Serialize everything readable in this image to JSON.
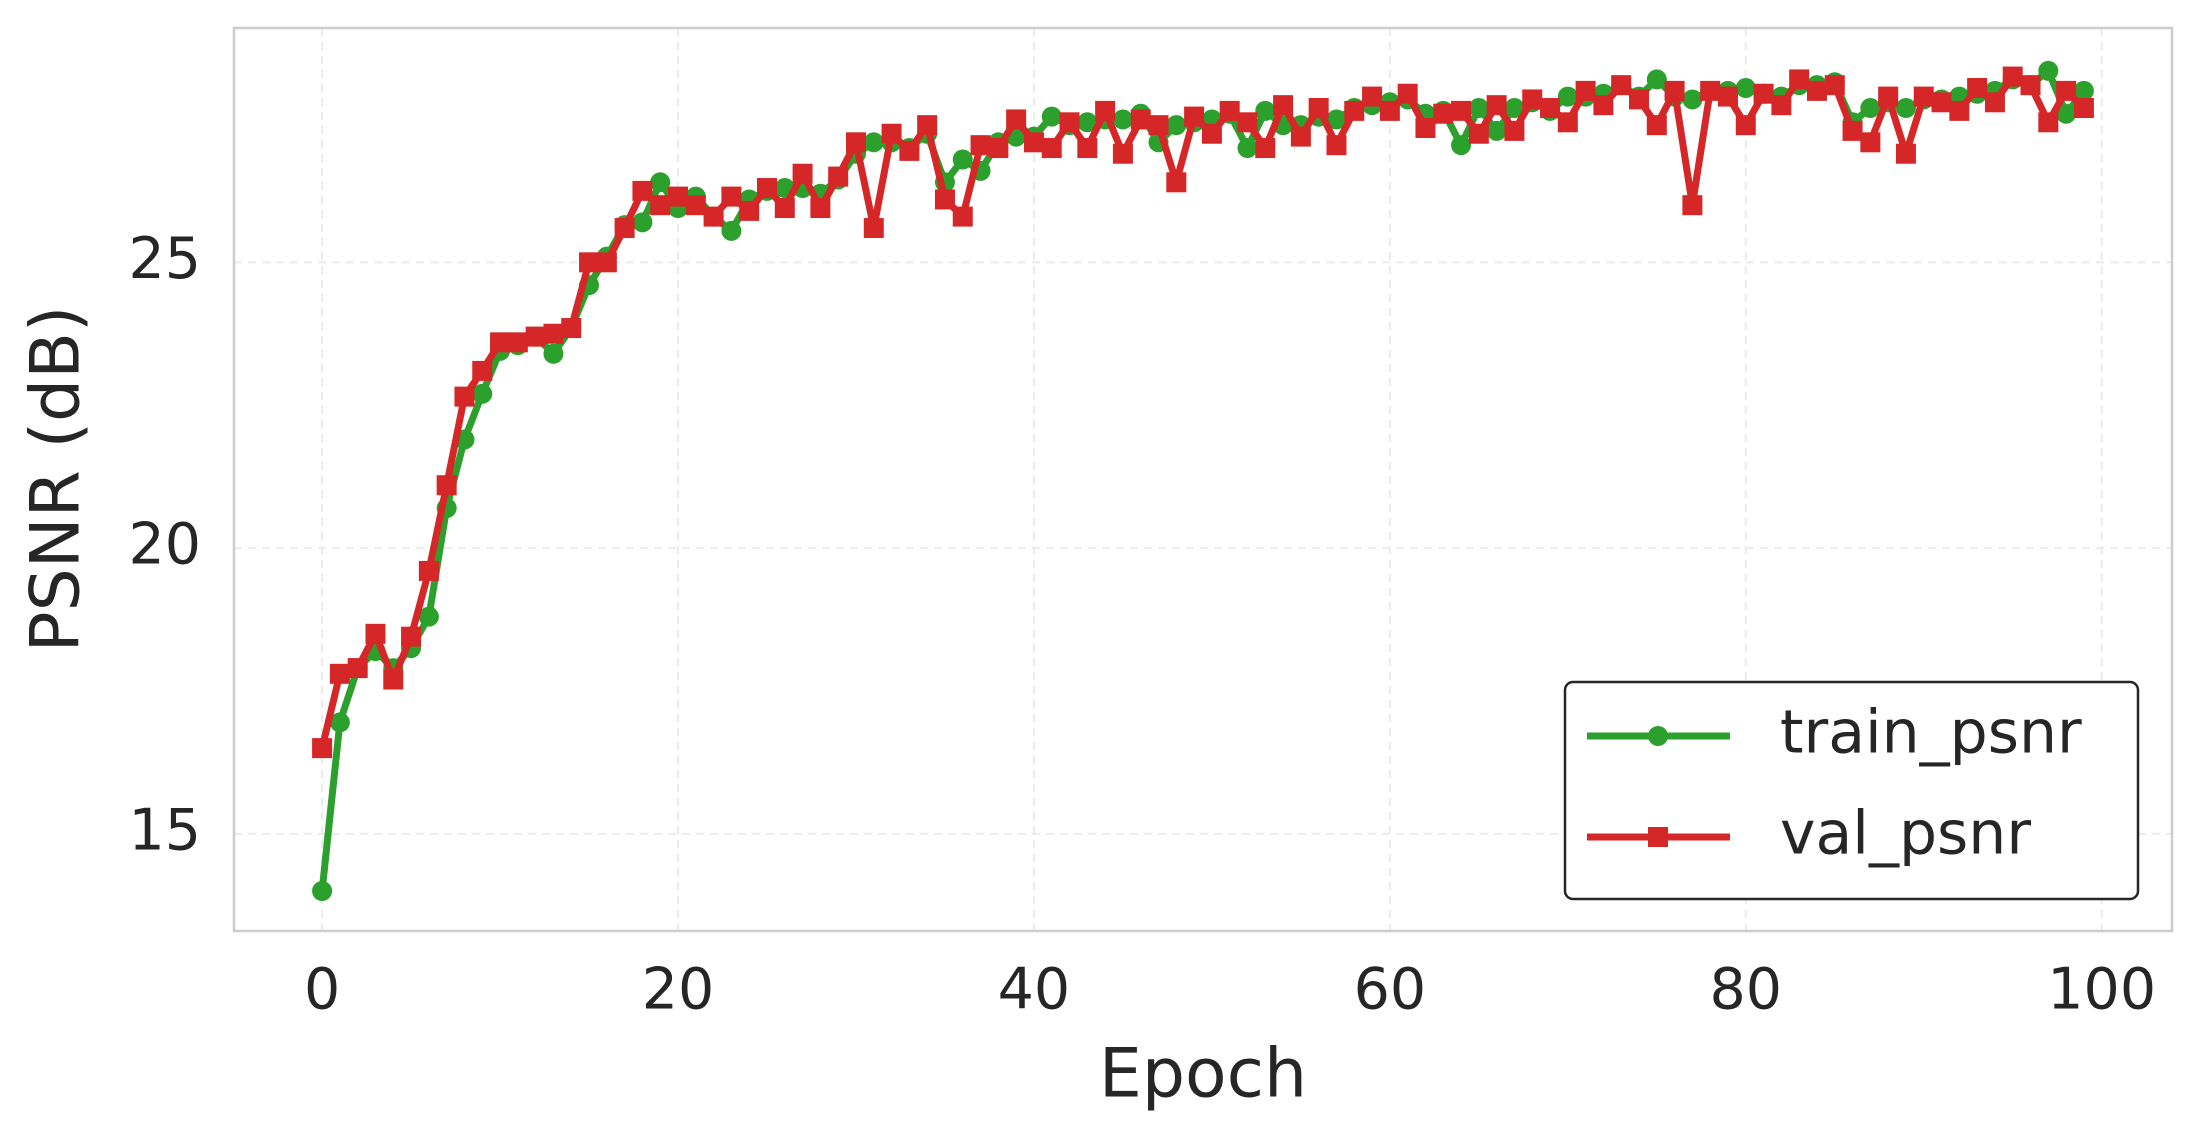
{
  "chart_data": {
    "type": "line",
    "x_label": "Epoch",
    "y_label": "PSNR (dB)",
    "x": [
      0,
      1,
      2,
      3,
      4,
      5,
      6,
      7,
      8,
      9,
      10,
      11,
      12,
      13,
      14,
      15,
      16,
      17,
      18,
      19,
      20,
      21,
      22,
      23,
      24,
      25,
      26,
      27,
      28,
      29,
      30,
      31,
      32,
      33,
      34,
      35,
      36,
      37,
      38,
      39,
      40,
      41,
      42,
      43,
      44,
      45,
      46,
      47,
      48,
      49,
      50,
      51,
      52,
      53,
      54,
      55,
      56,
      57,
      58,
      59,
      60,
      61,
      62,
      63,
      64,
      65,
      66,
      67,
      68,
      69,
      70,
      71,
      72,
      73,
      74,
      75,
      76,
      77,
      78,
      79,
      80,
      81,
      82,
      83,
      84,
      85,
      86,
      87,
      88,
      89,
      90,
      91,
      92,
      93,
      94,
      95,
      96,
      97,
      98,
      99
    ],
    "series": [
      {
        "name": "train_psnr",
        "color": "#2ca02c",
        "marker": "circle",
        "values": [
          14.0,
          16.95,
          17.9,
          18.2,
          17.9,
          18.25,
          18.8,
          20.7,
          21.9,
          22.7,
          23.45,
          23.55,
          23.7,
          23.4,
          23.85,
          24.6,
          25.1,
          25.65,
          25.7,
          26.4,
          25.95,
          26.15,
          25.8,
          25.55,
          26.1,
          26.25,
          26.3,
          26.3,
          26.2,
          26.45,
          26.9,
          27.1,
          27.1,
          27.0,
          27.25,
          26.4,
          26.8,
          26.6,
          27.1,
          27.2,
          27.2,
          27.55,
          27.4,
          27.45,
          27.5,
          27.5,
          27.6,
          27.1,
          27.4,
          27.45,
          27.5,
          27.6,
          27.0,
          27.65,
          27.4,
          27.4,
          27.55,
          27.5,
          27.7,
          27.75,
          27.8,
          27.85,
          27.6,
          27.65,
          27.05,
          27.7,
          27.3,
          27.7,
          27.8,
          27.65,
          27.9,
          27.9,
          27.95,
          28.1,
          27.9,
          28.2,
          27.9,
          27.85,
          28.0,
          28.0,
          28.05,
          27.95,
          27.9,
          28.1,
          28.1,
          28.15,
          27.45,
          27.7,
          27.8,
          27.7,
          27.85,
          27.85,
          27.9,
          27.95,
          28.0,
          28.2,
          28.1,
          28.35,
          27.6,
          28.0
        ]
      },
      {
        "name": "val_psnr",
        "color": "#d62728",
        "marker": "square",
        "values": [
          16.5,
          17.8,
          17.9,
          18.5,
          17.7,
          18.45,
          19.6,
          21.1,
          22.65,
          23.1,
          23.6,
          23.6,
          23.7,
          23.75,
          23.85,
          25.0,
          25.0,
          25.6,
          26.25,
          26.0,
          26.15,
          26.0,
          25.8,
          26.15,
          25.9,
          26.3,
          25.95,
          26.55,
          25.95,
          26.5,
          27.1,
          25.6,
          27.25,
          26.95,
          27.4,
          26.1,
          25.8,
          27.05,
          27.0,
          27.5,
          27.1,
          27.0,
          27.45,
          27.0,
          27.65,
          26.9,
          27.5,
          27.4,
          26.4,
          27.55,
          27.25,
          27.65,
          27.45,
          27.0,
          27.75,
          27.2,
          27.7,
          27.05,
          27.65,
          27.9,
          27.65,
          27.95,
          27.35,
          27.6,
          27.65,
          27.25,
          27.75,
          27.3,
          27.85,
          27.7,
          27.45,
          28.0,
          27.75,
          28.1,
          27.85,
          27.4,
          28.0,
          26.0,
          28.0,
          27.9,
          27.4,
          27.95,
          27.75,
          28.2,
          28.0,
          28.1,
          27.3,
          27.1,
          27.9,
          26.9,
          27.9,
          27.8,
          27.65,
          28.05,
          27.8,
          28.25,
          28.1,
          27.45,
          28.0,
          27.7
        ]
      }
    ],
    "xlim": [
      -4.95,
      103.95
    ],
    "ylim": [
      13.3,
      29.1
    ],
    "xticks": [
      0,
      20,
      40,
      60,
      80,
      100
    ],
    "yticks": [
      15,
      20,
      25
    ],
    "grid": true,
    "legend": "lower right"
  }
}
